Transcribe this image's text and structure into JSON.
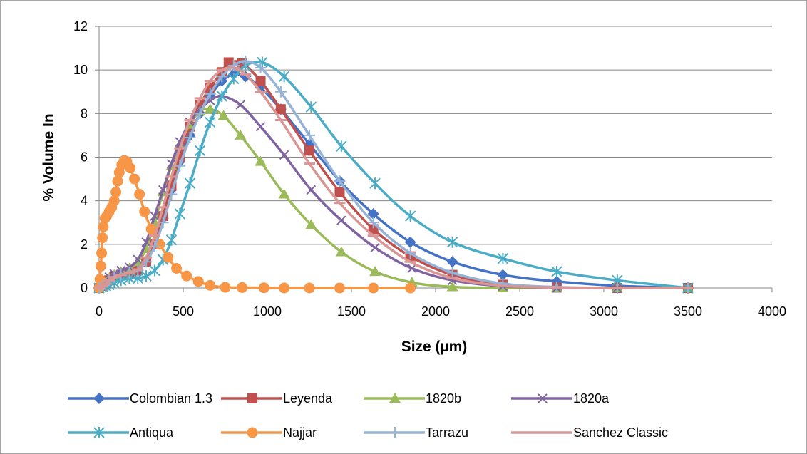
{
  "chart_data": {
    "type": "scatter",
    "xlabel": "Size (µm)",
    "ylabel": "% Volume In",
    "xlim": [
      0,
      4000
    ],
    "ylim": [
      0,
      12
    ],
    "xticks": [
      "0",
      "500",
      "1000",
      "1500",
      "2000",
      "2500",
      "3000",
      "3500",
      "4000"
    ],
    "yticks": [
      "0",
      "2",
      "4",
      "6",
      "8",
      "10",
      "12"
    ],
    "grid": "horizontal",
    "legend_position": "bottom",
    "series": [
      {
        "name": "Colombian 1.3",
        "color": "#4472C4",
        "marker": "diamond",
        "points": [
          [
            0,
            0
          ],
          [
            20,
            0.1
          ],
          [
            40,
            0.2
          ],
          [
            60,
            0.35
          ],
          [
            90,
            0.5
          ],
          [
            130,
            0.6
          ],
          [
            180,
            0.7
          ],
          [
            230,
            0.8
          ],
          [
            280,
            1.2
          ],
          [
            330,
            2.0
          ],
          [
            380,
            3.2
          ],
          [
            430,
            4.5
          ],
          [
            480,
            5.8
          ],
          [
            540,
            7.0
          ],
          [
            600,
            8.0
          ],
          [
            660,
            8.8
          ],
          [
            730,
            9.5
          ],
          [
            800,
            9.8
          ],
          [
            870,
            9.7
          ],
          [
            960,
            9.2
          ],
          [
            1080,
            8.2
          ],
          [
            1250,
            6.6
          ],
          [
            1430,
            4.9
          ],
          [
            1630,
            3.4
          ],
          [
            1850,
            2.1
          ],
          [
            2100,
            1.2
          ],
          [
            2400,
            0.6
          ],
          [
            2720,
            0.3
          ],
          [
            3080,
            0.1
          ],
          [
            3500,
            0
          ]
        ]
      },
      {
        "name": "Leyenda",
        "color": "#C0504D",
        "marker": "square",
        "points": [
          [
            0,
            0
          ],
          [
            20,
            0.1
          ],
          [
            40,
            0.2
          ],
          [
            60,
            0.35
          ],
          [
            90,
            0.5
          ],
          [
            130,
            0.6
          ],
          [
            180,
            0.7
          ],
          [
            230,
            0.8
          ],
          [
            280,
            1.2
          ],
          [
            330,
            2.0
          ],
          [
            380,
            3.3
          ],
          [
            430,
            4.7
          ],
          [
            480,
            6.0
          ],
          [
            540,
            7.4
          ],
          [
            600,
            8.4
          ],
          [
            660,
            9.2
          ],
          [
            730,
            9.9
          ],
          [
            770,
            10.35
          ],
          [
            850,
            10.3
          ],
          [
            960,
            9.5
          ],
          [
            1080,
            8.2
          ],
          [
            1250,
            6.3
          ],
          [
            1430,
            4.4
          ],
          [
            1630,
            2.7
          ],
          [
            1850,
            1.45
          ],
          [
            2100,
            0.6
          ],
          [
            2400,
            0.15
          ],
          [
            2720,
            0.02
          ],
          [
            3080,
            0
          ],
          [
            3500,
            0
          ]
        ]
      },
      {
        "name": "1820b",
        "color": "#9BBB59",
        "marker": "triangle",
        "points": [
          [
            0,
            0
          ],
          [
            20,
            0.1
          ],
          [
            40,
            0.25
          ],
          [
            60,
            0.45
          ],
          [
            90,
            0.6
          ],
          [
            130,
            0.75
          ],
          [
            180,
            0.9
          ],
          [
            230,
            1.2
          ],
          [
            280,
            1.8
          ],
          [
            330,
            3.0
          ],
          [
            380,
            4.4
          ],
          [
            430,
            5.6
          ],
          [
            480,
            6.6
          ],
          [
            540,
            7.5
          ],
          [
            600,
            8.1
          ],
          [
            660,
            8.2
          ],
          [
            740,
            7.9
          ],
          [
            840,
            7.0
          ],
          [
            960,
            5.8
          ],
          [
            1100,
            4.3
          ],
          [
            1260,
            2.9
          ],
          [
            1440,
            1.65
          ],
          [
            1640,
            0.75
          ],
          [
            1860,
            0.25
          ],
          [
            2100,
            0.05
          ],
          [
            2400,
            0
          ],
          [
            2720,
            0
          ],
          [
            3080,
            0
          ],
          [
            3500,
            0
          ]
        ]
      },
      {
        "name": "1820a",
        "color": "#8064A2",
        "marker": "x",
        "points": [
          [
            0,
            0
          ],
          [
            20,
            0.15
          ],
          [
            40,
            0.3
          ],
          [
            60,
            0.5
          ],
          [
            90,
            0.65
          ],
          [
            130,
            0.8
          ],
          [
            180,
            0.95
          ],
          [
            230,
            1.3
          ],
          [
            280,
            2.1
          ],
          [
            330,
            3.3
          ],
          [
            380,
            4.5
          ],
          [
            430,
            5.7
          ],
          [
            480,
            6.7
          ],
          [
            540,
            7.6
          ],
          [
            600,
            8.2
          ],
          [
            660,
            8.6
          ],
          [
            730,
            8.8
          ],
          [
            840,
            8.4
          ],
          [
            960,
            7.4
          ],
          [
            1100,
            6.1
          ],
          [
            1260,
            4.5
          ],
          [
            1440,
            3.1
          ],
          [
            1640,
            1.85
          ],
          [
            1860,
            0.9
          ],
          [
            2100,
            0.35
          ],
          [
            2400,
            0.08
          ],
          [
            2720,
            0
          ],
          [
            3080,
            0
          ],
          [
            3500,
            0
          ]
        ]
      },
      {
        "name": "Antiqua",
        "color": "#4BACC6",
        "marker": "asterisk",
        "points": [
          [
            0,
            0
          ],
          [
            20,
            0.05
          ],
          [
            40,
            0.1
          ],
          [
            60,
            0.15
          ],
          [
            90,
            0.25
          ],
          [
            130,
            0.35
          ],
          [
            180,
            0.45
          ],
          [
            230,
            0.45
          ],
          [
            280,
            0.55
          ],
          [
            330,
            0.8
          ],
          [
            380,
            1.3
          ],
          [
            430,
            2.2
          ],
          [
            480,
            3.4
          ],
          [
            540,
            4.8
          ],
          [
            600,
            6.3
          ],
          [
            660,
            7.6
          ],
          [
            730,
            8.8
          ],
          [
            800,
            9.6
          ],
          [
            870,
            10.2
          ],
          [
            970,
            10.35
          ],
          [
            1100,
            9.7
          ],
          [
            1260,
            8.3
          ],
          [
            1440,
            6.5
          ],
          [
            1640,
            4.8
          ],
          [
            1850,
            3.3
          ],
          [
            2100,
            2.1
          ],
          [
            2400,
            1.35
          ],
          [
            2720,
            0.75
          ],
          [
            3080,
            0.35
          ],
          [
            3500,
            0
          ]
        ]
      },
      {
        "name": "Najjar",
        "color": "#F79646",
        "marker": "circle",
        "points": [
          [
            0,
            0
          ],
          [
            5,
            0.4
          ],
          [
            10,
            1.0
          ],
          [
            15,
            1.6
          ],
          [
            20,
            2.3
          ],
          [
            25,
            2.8
          ],
          [
            35,
            3.2
          ],
          [
            45,
            3.3
          ],
          [
            60,
            3.5
          ],
          [
            75,
            3.7
          ],
          [
            90,
            4.0
          ],
          [
            100,
            4.4
          ],
          [
            110,
            4.9
          ],
          [
            120,
            5.3
          ],
          [
            135,
            5.65
          ],
          [
            150,
            5.85
          ],
          [
            165,
            5.8
          ],
          [
            185,
            5.5
          ],
          [
            210,
            5.0
          ],
          [
            240,
            4.3
          ],
          [
            270,
            3.5
          ],
          [
            310,
            2.7
          ],
          [
            360,
            2.0
          ],
          [
            410,
            1.4
          ],
          [
            460,
            0.9
          ],
          [
            520,
            0.55
          ],
          [
            590,
            0.3
          ],
          [
            660,
            0.12
          ],
          [
            750,
            0.03
          ],
          [
            850,
            0.02
          ],
          [
            980,
            0.01
          ],
          [
            1100,
            0
          ],
          [
            1250,
            0
          ],
          [
            1430,
            0
          ],
          [
            1630,
            0
          ],
          [
            1850,
            0
          ]
        ]
      },
      {
        "name": "Tarrazu",
        "color": "#95B3D7",
        "marker": "plus",
        "points": [
          [
            0,
            0
          ],
          [
            20,
            0.1
          ],
          [
            40,
            0.2
          ],
          [
            60,
            0.35
          ],
          [
            90,
            0.5
          ],
          [
            130,
            0.6
          ],
          [
            180,
            0.7
          ],
          [
            230,
            0.8
          ],
          [
            280,
            1.2
          ],
          [
            330,
            1.9
          ],
          [
            380,
            3.0
          ],
          [
            430,
            4.3
          ],
          [
            480,
            5.6
          ],
          [
            540,
            6.9
          ],
          [
            600,
            8.0
          ],
          [
            660,
            8.9
          ],
          [
            730,
            9.7
          ],
          [
            800,
            10.2
          ],
          [
            870,
            10.4
          ],
          [
            960,
            10.1
          ],
          [
            1080,
            9.0
          ],
          [
            1250,
            7.0
          ],
          [
            1430,
            4.9
          ],
          [
            1630,
            3.0
          ],
          [
            1850,
            1.6
          ],
          [
            2100,
            0.7
          ],
          [
            2400,
            0.2
          ],
          [
            2720,
            0.04
          ],
          [
            3080,
            0
          ],
          [
            3500,
            0
          ]
        ]
      },
      {
        "name": "Sanchez Classic",
        "color": "#D99694",
        "marker": "dash",
        "points": [
          [
            0,
            0
          ],
          [
            20,
            0.1
          ],
          [
            40,
            0.2
          ],
          [
            60,
            0.35
          ],
          [
            90,
            0.5
          ],
          [
            130,
            0.6
          ],
          [
            180,
            0.7
          ],
          [
            230,
            0.85
          ],
          [
            280,
            1.4
          ],
          [
            330,
            2.4
          ],
          [
            380,
            3.7
          ],
          [
            430,
            5.1
          ],
          [
            480,
            6.4
          ],
          [
            540,
            7.7
          ],
          [
            600,
            8.7
          ],
          [
            660,
            9.5
          ],
          [
            730,
            10.0
          ],
          [
            800,
            10.1
          ],
          [
            870,
            9.8
          ],
          [
            960,
            9.0
          ],
          [
            1080,
            7.7
          ],
          [
            1250,
            5.7
          ],
          [
            1430,
            3.9
          ],
          [
            1630,
            2.4
          ],
          [
            1850,
            1.2
          ],
          [
            2100,
            0.45
          ],
          [
            2400,
            0.1
          ],
          [
            2720,
            0.02
          ],
          [
            3080,
            0
          ],
          [
            3500,
            0
          ]
        ]
      }
    ]
  }
}
